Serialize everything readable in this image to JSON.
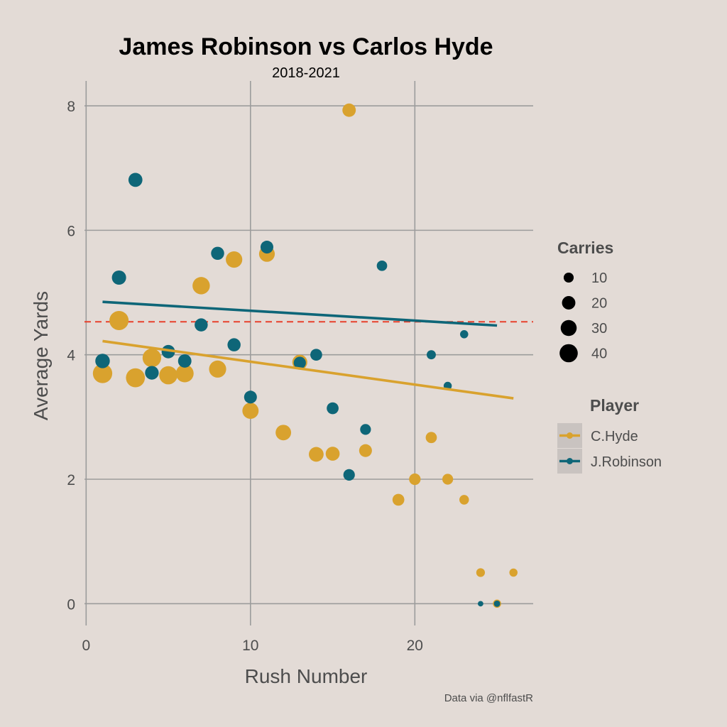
{
  "chart_data": {
    "type": "scatter",
    "title": "James Robinson vs Carlos Hyde",
    "subtitle": "2018-2021",
    "xlabel": "Rush Number",
    "ylabel": "Average Yards",
    "caption": "Data via @nflfastR",
    "xlim": [
      -0.1,
      27.2
    ],
    "ylim": [
      -0.35,
      8.4
    ],
    "xticks": [
      0,
      10,
      20
    ],
    "yticks": [
      0,
      2,
      4,
      6,
      8
    ],
    "reference_line": {
      "y": 4.53,
      "color": "#e8412c",
      "style": "dashed"
    },
    "size_legend": {
      "title": "Carries",
      "entries": [
        {
          "label": "10",
          "value": 10
        },
        {
          "label": "20",
          "value": 20
        },
        {
          "label": "30",
          "value": 30
        },
        {
          "label": "40",
          "value": 40
        }
      ]
    },
    "color_legend": {
      "title": "Player"
    },
    "series": [
      {
        "name": "C.Hyde",
        "color": "#d9a22e",
        "trend": {
          "x": [
            1,
            26
          ],
          "y": [
            4.22,
            3.3
          ]
        },
        "points": [
          {
            "x": 1,
            "y": 3.7,
            "carries": 46
          },
          {
            "x": 2,
            "y": 4.55,
            "carries": 45
          },
          {
            "x": 3,
            "y": 3.63,
            "carries": 44
          },
          {
            "x": 4,
            "y": 3.95,
            "carries": 42
          },
          {
            "x": 5,
            "y": 3.67,
            "carries": 40
          },
          {
            "x": 6,
            "y": 3.7,
            "carries": 38
          },
          {
            "x": 7,
            "y": 5.11,
            "carries": 36
          },
          {
            "x": 8,
            "y": 3.77,
            "carries": 35
          },
          {
            "x": 9,
            "y": 5.53,
            "carries": 32
          },
          {
            "x": 10,
            "y": 3.1,
            "carries": 31
          },
          {
            "x": 11,
            "y": 5.62,
            "carries": 29
          },
          {
            "x": 12,
            "y": 2.75,
            "carries": 28
          },
          {
            "x": 13,
            "y": 3.88,
            "carries": 26
          },
          {
            "x": 14,
            "y": 2.4,
            "carries": 25
          },
          {
            "x": 15,
            "y": 2.41,
            "carries": 22
          },
          {
            "x": 16,
            "y": 7.93,
            "carries": 20
          },
          {
            "x": 17,
            "y": 2.46,
            "carries": 18
          },
          {
            "x": 19,
            "y": 1.67,
            "carries": 15
          },
          {
            "x": 20,
            "y": 2.0,
            "carries": 14
          },
          {
            "x": 21,
            "y": 2.67,
            "carries": 13
          },
          {
            "x": 22,
            "y": 2.0,
            "carries": 12
          },
          {
            "x": 23,
            "y": 1.67,
            "carries": 9
          },
          {
            "x": 24,
            "y": 0.5,
            "carries": 7
          },
          {
            "x": 25,
            "y": 0.0,
            "carries": 6
          },
          {
            "x": 26,
            "y": 0.5,
            "carries": 6
          }
        ]
      },
      {
        "name": "J.Robinson",
        "color": "#0e6678",
        "trend": {
          "x": [
            1,
            25
          ],
          "y": [
            4.85,
            4.47
          ]
        },
        "points": [
          {
            "x": 1,
            "y": 3.9,
            "carries": 24
          },
          {
            "x": 2,
            "y": 5.24,
            "carries": 23
          },
          {
            "x": 3,
            "y": 6.81,
            "carries": 22
          },
          {
            "x": 4,
            "y": 3.71,
            "carries": 21
          },
          {
            "x": 5,
            "y": 4.05,
            "carries": 20
          },
          {
            "x": 6,
            "y": 3.9,
            "carries": 20
          },
          {
            "x": 7,
            "y": 4.48,
            "carries": 19
          },
          {
            "x": 8,
            "y": 5.63,
            "carries": 19
          },
          {
            "x": 9,
            "y": 4.16,
            "carries": 19
          },
          {
            "x": 10,
            "y": 3.32,
            "carries": 18
          },
          {
            "x": 11,
            "y": 5.73,
            "carries": 18
          },
          {
            "x": 13,
            "y": 3.87,
            "carries": 16
          },
          {
            "x": 14,
            "y": 4.0,
            "carries": 15
          },
          {
            "x": 15,
            "y": 3.14,
            "carries": 15
          },
          {
            "x": 16,
            "y": 2.07,
            "carries": 14
          },
          {
            "x": 17,
            "y": 2.8,
            "carries": 12
          },
          {
            "x": 18,
            "y": 5.43,
            "carries": 11
          },
          {
            "x": 21,
            "y": 4.0,
            "carries": 8
          },
          {
            "x": 22,
            "y": 3.5,
            "carries": 6
          },
          {
            "x": 23,
            "y": 4.33,
            "carries": 6
          },
          {
            "x": 24,
            "y": 0.0,
            "carries": 2
          },
          {
            "x": 25,
            "y": 0.0,
            "carries": 3
          }
        ]
      }
    ]
  }
}
